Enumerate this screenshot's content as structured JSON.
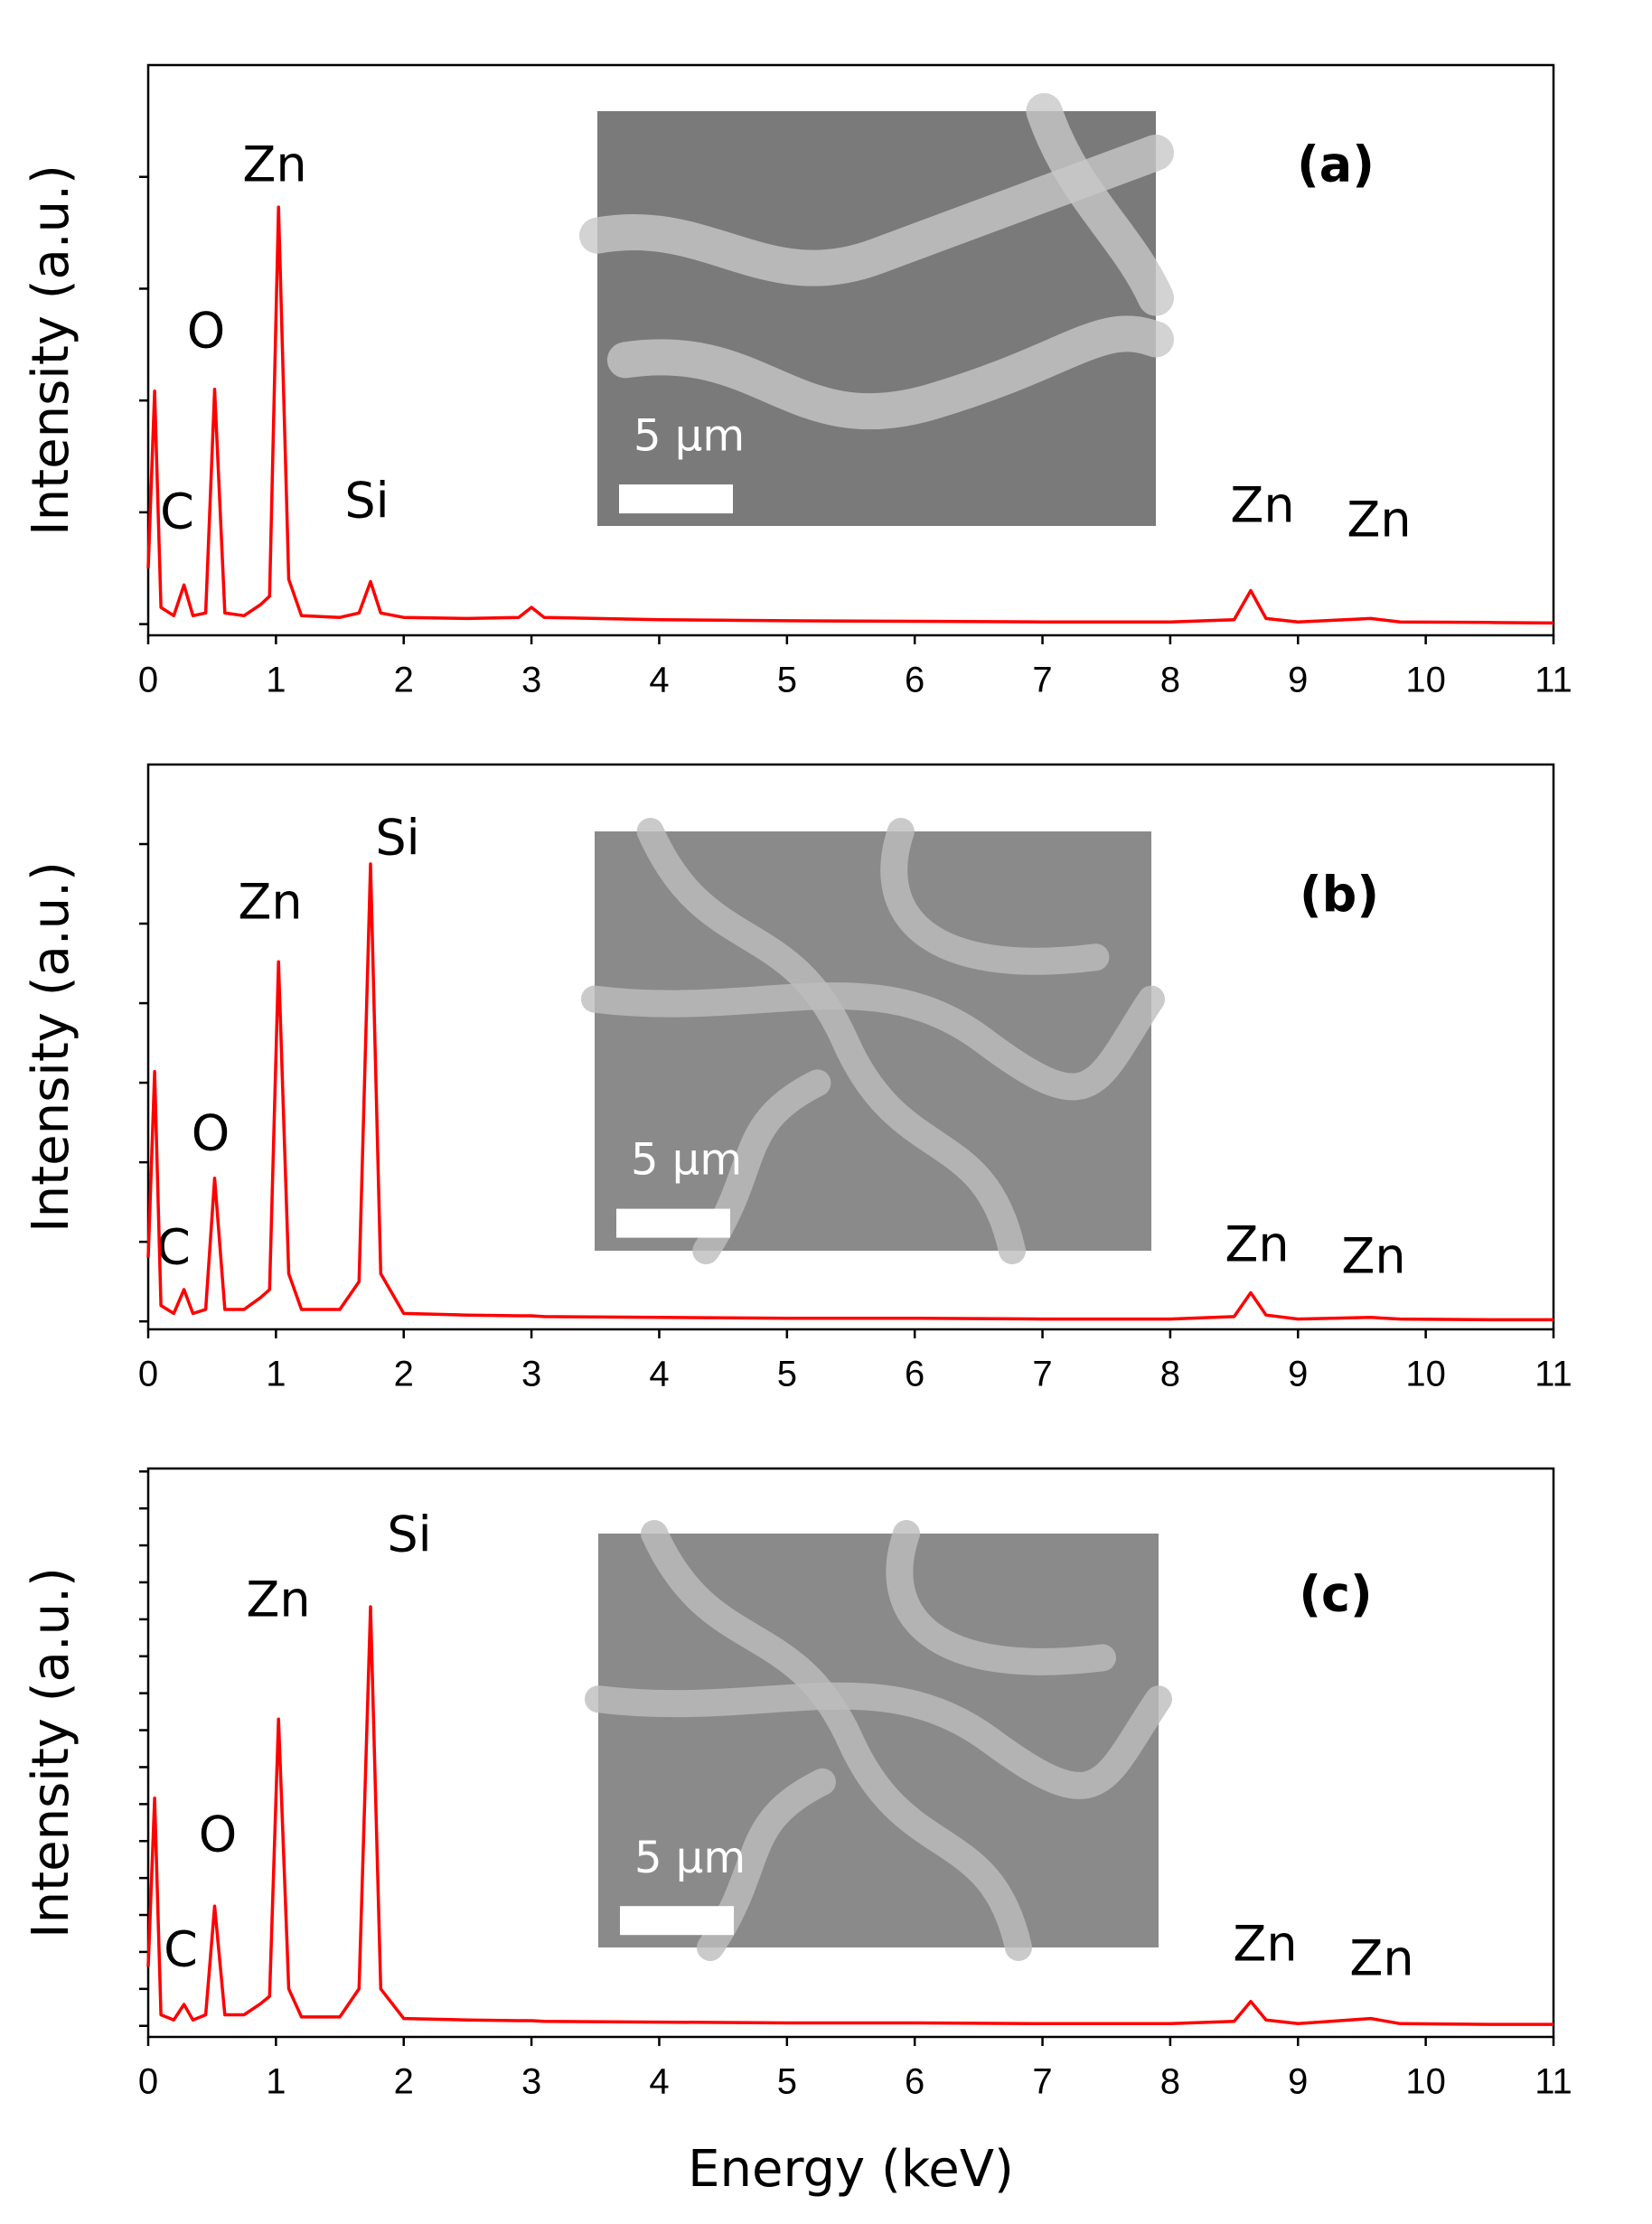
{
  "chart_data": [
    {
      "type": "line",
      "ylabel": "Intensity (a.u.)",
      "panel_label": "(a)",
      "scale_bar": "5 μm",
      "color": "#ff0000",
      "x": [
        0,
        0.05,
        0.1,
        0.2,
        0.28,
        0.35,
        0.45,
        0.52,
        0.6,
        0.75,
        0.88,
        0.95,
        1.02,
        1.1,
        1.2,
        1.5,
        1.65,
        1.74,
        1.82,
        2.0,
        2.5,
        2.9,
        3.0,
        3.1,
        4,
        5,
        6,
        7,
        8,
        8.5,
        8.63,
        8.75,
        9.0,
        9.57,
        9.8,
        10.5,
        11
      ],
      "values": [
        10,
        41.7,
        3,
        1.5,
        7,
        1.5,
        2,
        42,
        2,
        1.5,
        3.5,
        5,
        74.6,
        8,
        1.5,
        1.2,
        2,
        7.6,
        2,
        1.2,
        1,
        1.2,
        3,
        1.2,
        0.8,
        0.6,
        0.5,
        0.4,
        0.4,
        0.8,
        6,
        1,
        0.4,
        1,
        0.4,
        0.3,
        0.2
      ],
      "annotations": [
        "C",
        "O",
        "Zn",
        "Si",
        "Zn",
        "Zn"
      ],
      "xlim": [
        0,
        11
      ],
      "xticks": [
        0,
        1,
        2,
        3,
        4,
        5,
        6,
        7,
        8,
        9,
        10,
        11
      ],
      "ylim": [
        -2,
        100
      ],
      "yticks": [
        0,
        20,
        40,
        60,
        80
      ]
    },
    {
      "type": "line",
      "ylabel": "Intensity (a.u.)",
      "panel_label": "(b)",
      "scale_bar": "5 μm",
      "color": "#ff0000",
      "x": [
        0,
        0.05,
        0.1,
        0.2,
        0.28,
        0.35,
        0.45,
        0.52,
        0.6,
        0.75,
        0.88,
        0.95,
        1.02,
        1.1,
        1.2,
        1.5,
        1.65,
        1.74,
        1.82,
        2.0,
        2.5,
        2.9,
        3.0,
        3.1,
        4,
        5,
        6,
        7,
        8,
        8.5,
        8.63,
        8.75,
        9.0,
        9.57,
        9.8,
        10.5,
        11
      ],
      "values": [
        8,
        31.4,
        2,
        1,
        4,
        1,
        1.5,
        18,
        1.5,
        1.5,
        3,
        4,
        45.2,
        6,
        1.5,
        1.5,
        5,
        57.5,
        6,
        1,
        0.8,
        0.7,
        0.7,
        0.6,
        0.5,
        0.4,
        0.4,
        0.3,
        0.3,
        0.6,
        3.6,
        0.8,
        0.3,
        0.5,
        0.3,
        0.2,
        0.2
      ],
      "annotations": [
        "C",
        "O",
        "Zn",
        "Si",
        "Zn",
        "Zn"
      ],
      "xlim": [
        0,
        11
      ],
      "xticks": [
        0,
        1,
        2,
        3,
        4,
        5,
        6,
        7,
        8,
        9,
        10,
        11
      ],
      "ylim": [
        -1,
        70
      ],
      "yticks": [
        0,
        10,
        20,
        30,
        40,
        50,
        60
      ]
    },
    {
      "type": "line",
      "ylabel": "Intensity (a.u.)",
      "xlabel": "Energy (keV)",
      "panel_label": "(c)",
      "scale_bar": "5 μm",
      "color": "#ff0000",
      "x": [
        0,
        0.05,
        0.1,
        0.2,
        0.28,
        0.35,
        0.45,
        0.52,
        0.6,
        0.75,
        0.88,
        0.95,
        1.02,
        1.1,
        1.2,
        1.5,
        1.65,
        1.74,
        1.82,
        2.0,
        2.5,
        2.9,
        3.0,
        3.1,
        4,
        5,
        6,
        7,
        8,
        8.5,
        8.63,
        8.75,
        9.0,
        9.57,
        9.8,
        10.5,
        11
      ],
      "values": [
        8,
        30.8,
        1.5,
        0.8,
        2.9,
        0.8,
        1.5,
        16.2,
        1.5,
        1.5,
        3,
        4,
        41.5,
        5,
        1.2,
        1.2,
        5,
        56.7,
        5,
        1,
        0.8,
        0.7,
        0.7,
        0.6,
        0.5,
        0.4,
        0.4,
        0.3,
        0.3,
        0.6,
        3.3,
        0.8,
        0.3,
        1,
        0.3,
        0.2,
        0.2
      ],
      "annotations": [
        "C",
        "O",
        "Zn",
        "Si",
        "Zn",
        "Zn"
      ],
      "xlim": [
        0,
        11
      ],
      "xticks": [
        0,
        1,
        2,
        3,
        4,
        5,
        6,
        7,
        8,
        9,
        10,
        11
      ],
      "ylim": [
        -1.5,
        75.4
      ],
      "yticks": [
        0,
        5,
        10,
        15,
        20,
        25,
        30,
        35,
        40,
        45,
        50,
        55,
        60,
        65,
        70,
        75
      ]
    }
  ]
}
